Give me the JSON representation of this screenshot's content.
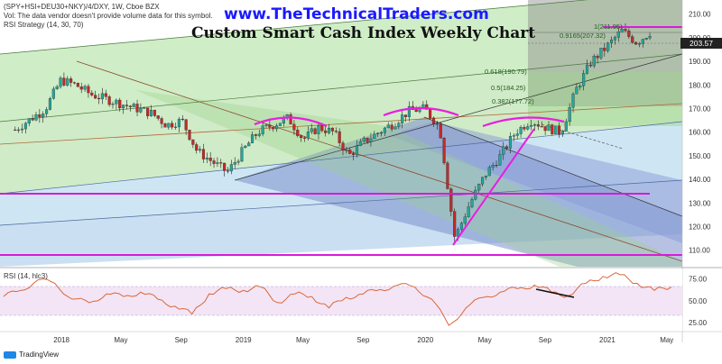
{
  "header": {
    "symbol_line": "(SPY+HSI+DEU30+NKY)/4/DXY, 1W, Cboe BZX",
    "vol_line": "Vol: The data vendor doesn't provide volume data for this symbol.",
    "strategy_line": "RSI Strategy (14, 30, 70)",
    "website": "www.TheTechnicalTraders.com",
    "title": "Custom Smart Cash Index Weekly Chart"
  },
  "price_tag": "203.57",
  "fib_labels": [
    {
      "text": "1(211.95)",
      "value": 211.95
    },
    {
      "text": "0.9165(207.32)",
      "value": 207.32
    },
    {
      "text": "0.618(190.79)",
      "value": 190.79
    },
    {
      "text": "0.5(184.25)",
      "value": 184.25
    },
    {
      "text": "0.382(177.72)",
      "value": 177.72
    }
  ],
  "rsi_label": "RSI (14, hlc3)",
  "footer": {
    "brand": "TradingView"
  },
  "colors": {
    "up_candle": "#26a69a",
    "down_candle": "#c62828",
    "magenta": "#e91ee0",
    "rsi_line": "#d9683a",
    "rsi_band": "#f3e5f5"
  },
  "chart_data": [
    {
      "type": "candlestick",
      "title": "Custom Smart Cash Index Weekly Chart",
      "y_axis_ticks": [
        110,
        120,
        130,
        140,
        150,
        160,
        170,
        180,
        190,
        200,
        210
      ],
      "ylim": [
        103,
        216
      ],
      "x_ticks": [
        "2018",
        "May",
        "Sep",
        "2019",
        "May",
        "Sep",
        "2020",
        "May",
        "Sep",
        "2021",
        "May"
      ],
      "close_path": [
        [
          "2017-10",
          161
        ],
        [
          "2017-12",
          170
        ],
        [
          "2018-01",
          182
        ],
        [
          "2018-02",
          180
        ],
        [
          "2018-03",
          176
        ],
        [
          "2018-05",
          172
        ],
        [
          "2018-07",
          168
        ],
        [
          "2018-08",
          163
        ],
        [
          "2018-09",
          165
        ],
        [
          "2018-10",
          152
        ],
        [
          "2018-12",
          143
        ],
        [
          "2019-01",
          152
        ],
        [
          "2019-02",
          160
        ],
        [
          "2019-03",
          163
        ],
        [
          "2019-04",
          166
        ],
        [
          "2019-05",
          157
        ],
        [
          "2019-06",
          162
        ],
        [
          "2019-07",
          160
        ],
        [
          "2019-08",
          150
        ],
        [
          "2019-09",
          156
        ],
        [
          "2019-10",
          160
        ],
        [
          "2019-11",
          164
        ],
        [
          "2019-12",
          169
        ],
        [
          "2020-01",
          170
        ],
        [
          "2020-02",
          162
        ],
        [
          "2020-03",
          115
        ],
        [
          "2020-04",
          130
        ],
        [
          "2020-05",
          142
        ],
        [
          "2020-06",
          150
        ],
        [
          "2020-07",
          160
        ],
        [
          "2020-08",
          165
        ],
        [
          "2020-09",
          162
        ],
        [
          "2020-10",
          160
        ],
        [
          "2020-11",
          178
        ],
        [
          "2020-12",
          190
        ],
        [
          "2021-01",
          196
        ],
        [
          "2021-02",
          203
        ],
        [
          "2021-03",
          198
        ],
        [
          "2021-04",
          203
        ]
      ]
    },
    {
      "type": "line",
      "title": "RSI (14, hlc3)",
      "y_axis_ticks": [
        25.0,
        50.0,
        75.0
      ],
      "ylim": [
        17,
        85
      ],
      "bands": [
        30,
        70
      ],
      "values": [
        55,
        62,
        74,
        70,
        52,
        48,
        58,
        55,
        60,
        52,
        44,
        35,
        58,
        64,
        62,
        66,
        48,
        58,
        55,
        42,
        54,
        58,
        63,
        68,
        66,
        52,
        22,
        42,
        54,
        60,
        64,
        68,
        60,
        56,
        70,
        78,
        80,
        70,
        62,
        66
      ]
    }
  ]
}
